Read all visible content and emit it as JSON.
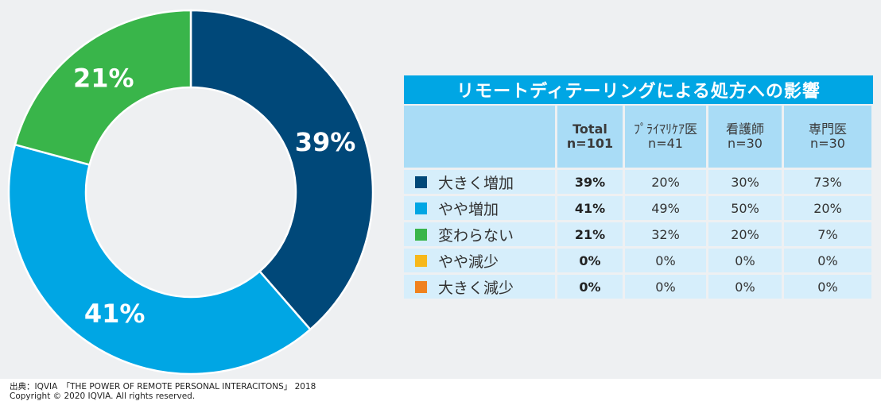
{
  "chart_data": {
    "type": "pie",
    "donut": true,
    "categories": [
      "大きく増加",
      "やや増加",
      "変わらない"
    ],
    "values": [
      39,
      41,
      21
    ],
    "labels": [
      "39%",
      "41%",
      "21%"
    ],
    "colors": [
      "#004879",
      "#00a6e4",
      "#39b54a"
    ]
  },
  "table": {
    "title": "リモートディテーリングによる処方への影響",
    "columns": [
      {
        "line1": "Total",
        "line2": "n=101"
      },
      {
        "line1": "ﾌﾟﾗｲﾏﾘｹｱ医",
        "line2": "n=41"
      },
      {
        "line1": "看護師",
        "line2": "n=30"
      },
      {
        "line1": "専門医",
        "line2": "n=30"
      }
    ],
    "rows": [
      {
        "label": "大きく増加",
        "color": "#004879",
        "values": [
          "39%",
          "20%",
          "30%",
          "73%"
        ]
      },
      {
        "label": "やや増加",
        "color": "#00a6e4",
        "values": [
          "41%",
          "49%",
          "50%",
          "20%"
        ]
      },
      {
        "label": "変わらない",
        "color": "#39b54a",
        "values": [
          "21%",
          "32%",
          "20%",
          "7%"
        ]
      },
      {
        "label": "やや減少",
        "color": "#f7b81b",
        "values": [
          "0%",
          "0%",
          "0%",
          "0%"
        ]
      },
      {
        "label": "大きく減少",
        "color": "#f0821e",
        "values": [
          "0%",
          "0%",
          "0%",
          "0%"
        ]
      }
    ]
  },
  "footer": {
    "source": "出典：IQVIA　「THE POWER OF REMOTE PERSONAL INTERACITONS」 2018",
    "copyright": "Copyright © 2020 IQVIA. All rights reserved."
  }
}
